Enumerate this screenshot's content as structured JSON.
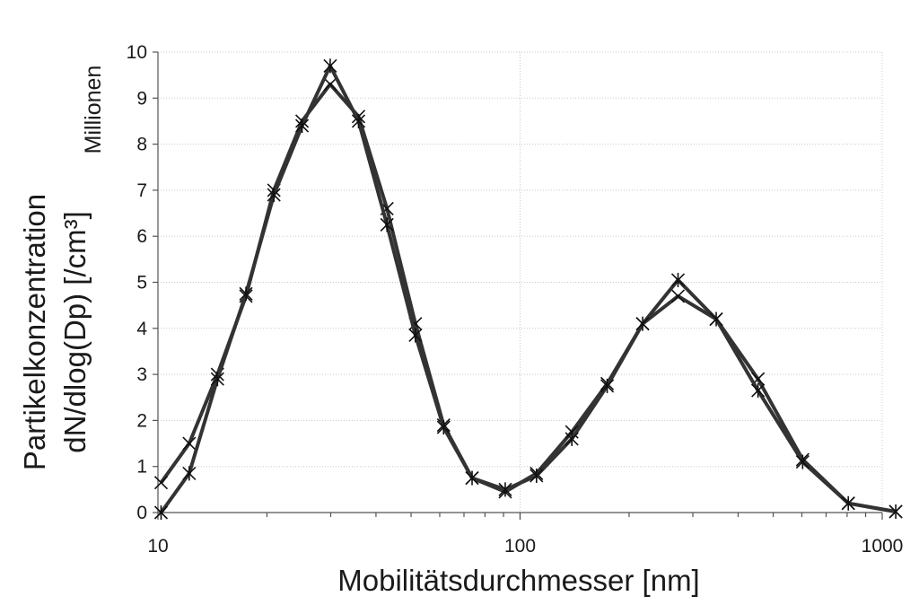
{
  "chart_data": {
    "type": "line",
    "xscale": "log",
    "xlim": [
      10,
      1000
    ],
    "ylim": [
      0,
      10
    ],
    "grid": true,
    "legend": "none",
    "xlabel": "Mobilitätsdurchmesser [nm]",
    "ylabel_line1": "Partikelkonzentration",
    "ylabel_line2": "dN/dlog(Dp) [/cm³]",
    "y_unit_label": "Millionen",
    "x_ticks": [
      10,
      100,
      1000
    ],
    "x_tick_labels": [
      "10",
      "100",
      "1000"
    ],
    "y_ticks": [
      0,
      1,
      2,
      3,
      4,
      5,
      6,
      7,
      8,
      9,
      10
    ],
    "y_tick_labels": [
      "0",
      "1",
      "2",
      "3",
      "4",
      "5",
      "6",
      "7",
      "8",
      "9",
      "10"
    ],
    "series_color": "#333333",
    "series": [
      {
        "marker": "x",
        "points": [
          [
            10.2,
            0.65
          ],
          [
            12.2,
            1.5
          ],
          [
            14.6,
            3.0
          ],
          [
            17.5,
            4.7
          ],
          [
            20.9,
            7.0
          ],
          [
            25.0,
            8.5
          ],
          [
            29.9,
            9.3
          ],
          [
            35.8,
            8.6
          ],
          [
            42.9,
            6.6
          ],
          [
            51.4,
            4.1
          ],
          [
            61.5,
            1.9
          ],
          [
            73.7,
            0.75
          ],
          [
            91.0,
            0.45
          ],
          [
            111.0,
            0.85
          ],
          [
            139.0,
            1.75
          ],
          [
            174.0,
            2.8
          ],
          [
            218.0,
            4.1
          ],
          [
            273.0,
            4.7
          ],
          [
            348.0,
            4.2
          ],
          [
            454.0,
            2.9
          ],
          [
            603.0,
            1.15
          ],
          [
            806.0,
            0.2
          ],
          [
            1090.0,
            0.02
          ]
        ]
      },
      {
        "marker": "asterisk",
        "points": [
          [
            10.2,
            0.0
          ],
          [
            12.2,
            0.85
          ],
          [
            14.6,
            2.9
          ],
          [
            17.5,
            4.75
          ],
          [
            20.9,
            6.9
          ],
          [
            25.0,
            8.4
          ],
          [
            29.9,
            9.7
          ],
          [
            35.8,
            8.5
          ],
          [
            42.9,
            6.25
          ],
          [
            51.4,
            3.85
          ],
          [
            61.5,
            1.85
          ],
          [
            73.7,
            0.75
          ],
          [
            91.0,
            0.5
          ],
          [
            111.0,
            0.8
          ],
          [
            139.0,
            1.6
          ],
          [
            174.0,
            2.75
          ],
          [
            218.0,
            4.1
          ],
          [
            273.0,
            5.05
          ],
          [
            348.0,
            4.2
          ],
          [
            454.0,
            2.65
          ],
          [
            603.0,
            1.1
          ],
          [
            806.0,
            0.2
          ],
          [
            1090.0,
            0.02
          ]
        ]
      }
    ]
  }
}
